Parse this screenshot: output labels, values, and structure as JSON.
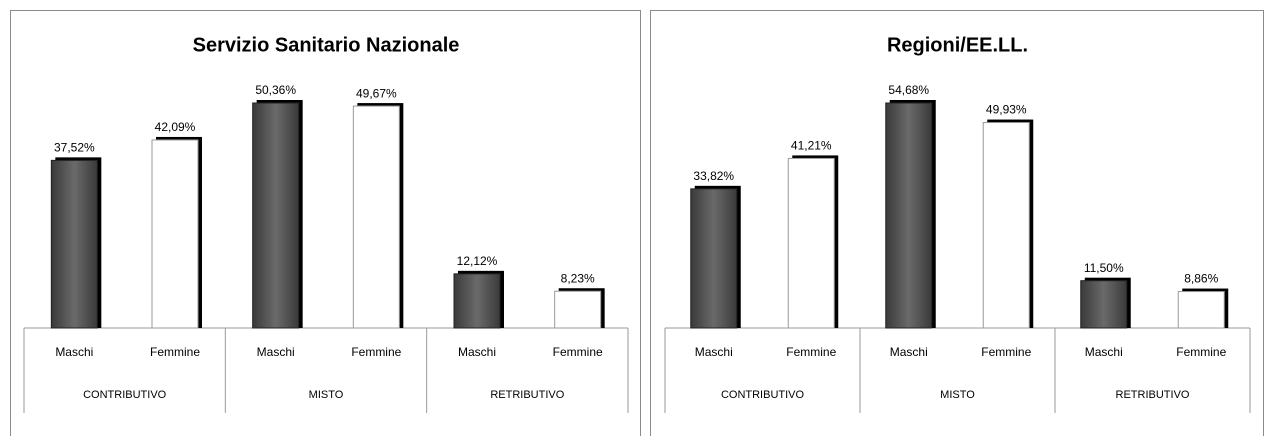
{
  "chart_data": [
    {
      "type": "bar",
      "title": "Servizio Sanitario Nazionale",
      "categories": [
        "Maschi",
        "Femmine",
        "Maschi",
        "Femmine",
        "Maschi",
        "Femmine"
      ],
      "groups": [
        "CONTRIBUTIVO",
        "MISTO",
        "RETRIBUTIVO"
      ],
      "values": [
        37.52,
        42.09,
        50.36,
        49.67,
        12.12,
        8.23
      ],
      "value_labels": [
        "37,52%",
        "42,09%",
        "50,36%",
        "49,67%",
        "12,12%",
        "8,23%"
      ],
      "colors": [
        "#5a5a5a",
        "#ffffff",
        "#5a5a5a",
        "#ffffff",
        "#5a5a5a",
        "#ffffff"
      ]
    },
    {
      "type": "bar",
      "title": "Regioni/EE.LL.",
      "categories": [
        "Maschi",
        "Femmine",
        "Maschi",
        "Femmine",
        "Maschi",
        "Femmine"
      ],
      "groups": [
        "CONTRIBUTIVO",
        "MISTO",
        "RETRIBUTIVO"
      ],
      "values": [
        33.82,
        41.21,
        54.68,
        49.93,
        11.5,
        8.86
      ],
      "value_labels": [
        "33,82%",
        "41,21%",
        "54,68%",
        "49,93%",
        "11,50%",
        "8,86%"
      ],
      "colors": [
        "#5a5a5a",
        "#ffffff",
        "#5a5a5a",
        "#ffffff",
        "#5a5a5a",
        "#ffffff"
      ]
    }
  ]
}
